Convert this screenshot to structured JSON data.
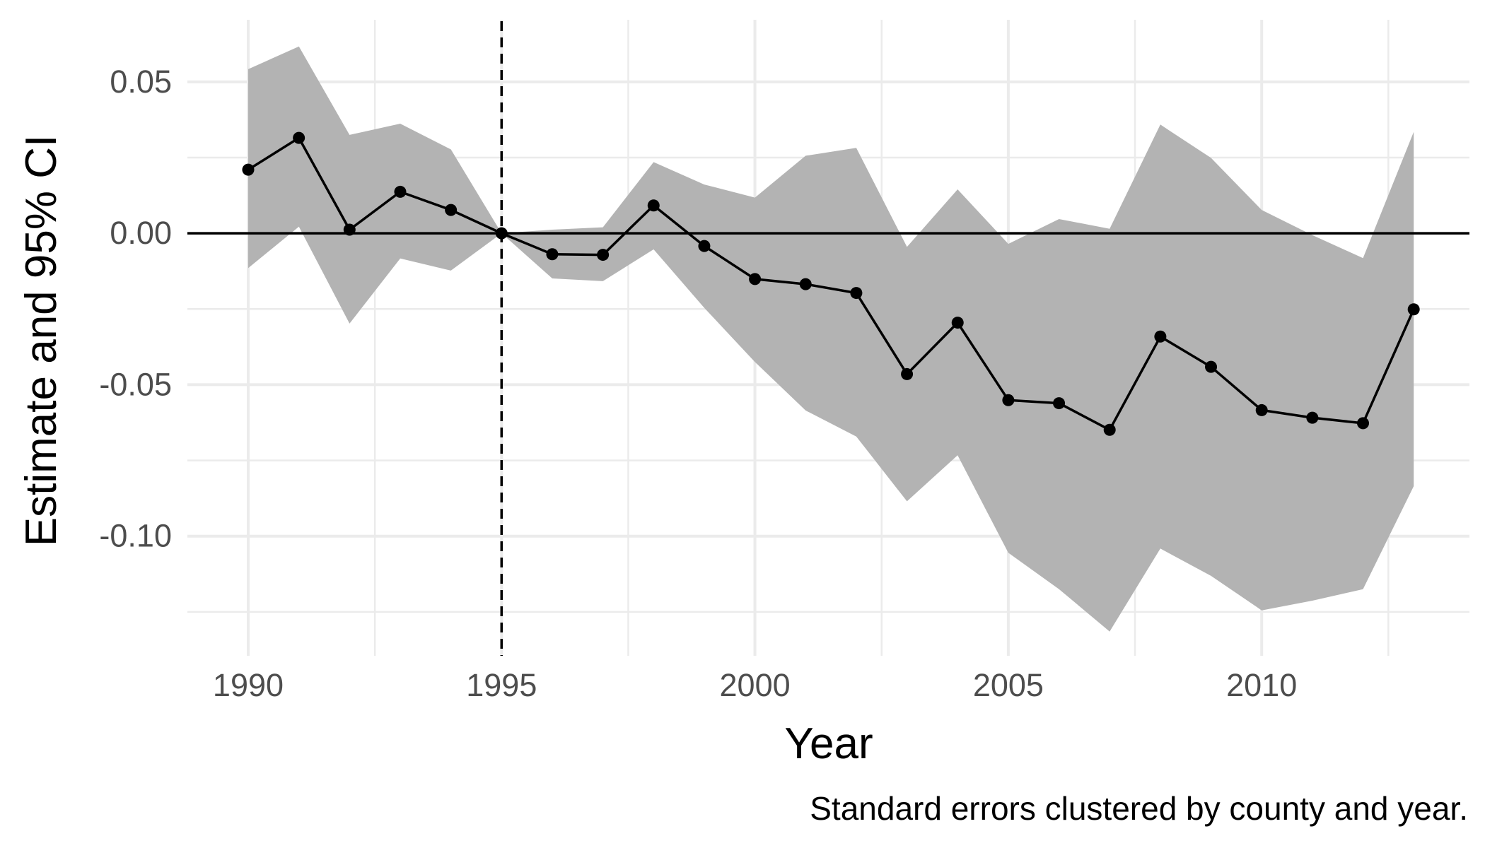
{
  "chart_data": {
    "type": "line",
    "title": "",
    "xlabel": "Year",
    "ylabel": "Estimate and 95% CI",
    "caption": "Standard errors clustered by county and year.",
    "xlim": [
      1988.8,
      2014.1
    ],
    "ylim": [
      -0.1395,
      0.0705
    ],
    "x_ticks": [
      1990,
      1995,
      2000,
      2005,
      2010
    ],
    "x_tick_labels": [
      "1990",
      "1995",
      "2000",
      "2005",
      "2010"
    ],
    "y_ticks": [
      0.05,
      0.0,
      -0.05,
      -0.1
    ],
    "y_tick_labels": [
      "0.05",
      "0.00",
      "-0.05",
      "-0.10"
    ],
    "reference_hline": 0,
    "reference_vline": 1995,
    "band_color": "#b3b3b3",
    "line_color": "#000000",
    "series": [
      {
        "name": "Estimate",
        "x": [
          1990,
          1991,
          1992,
          1993,
          1994,
          1995,
          1996,
          1997,
          1998,
          1999,
          2000,
          2001,
          2002,
          2003,
          2004,
          2005,
          2006,
          2007,
          2008,
          2009,
          2010,
          2011,
          2012,
          2013
        ],
        "y": [
          0.021,
          0.0315,
          0.0012,
          0.0137,
          0.0077,
          0.0,
          -0.0069,
          -0.0071,
          0.0092,
          -0.0042,
          -0.0151,
          -0.0168,
          -0.0197,
          -0.0465,
          -0.0295,
          -0.0551,
          -0.0561,
          -0.0649,
          -0.0341,
          -0.0441,
          -0.0584,
          -0.0609,
          -0.0627,
          -0.0251
        ],
        "ci_lower": [
          -0.0115,
          0.0022,
          -0.0298,
          -0.0083,
          -0.0123,
          0.0,
          -0.0149,
          -0.0158,
          -0.0053,
          -0.0246,
          -0.0425,
          -0.0585,
          -0.0671,
          -0.0885,
          -0.0733,
          -0.1055,
          -0.1175,
          -0.1315,
          -0.1041,
          -0.1131,
          -0.1245,
          -0.1213,
          -0.1175,
          -0.0835
        ],
        "ci_upper": [
          0.0542,
          0.0617,
          0.0325,
          0.0362,
          0.0277,
          0.0,
          0.0012,
          0.002,
          0.0235,
          0.0161,
          0.0118,
          0.0256,
          0.0282,
          -0.0045,
          0.0145,
          -0.0035,
          0.0047,
          0.0015,
          0.0359,
          0.0249,
          0.0077,
          -0.0006,
          -0.0082,
          0.0335
        ]
      }
    ]
  }
}
